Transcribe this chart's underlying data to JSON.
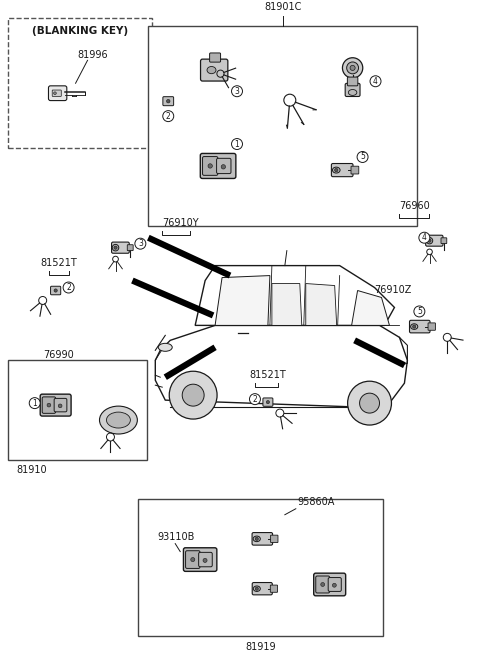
{
  "bg_color": "#ffffff",
  "fig_w": 4.8,
  "fig_h": 6.55,
  "dpi": 100,
  "lc": "#1a1a1a",
  "labels": {
    "blanking_key_title": "(BLANKING KEY)",
    "part_81996": "81996",
    "part_81901C": "81901C",
    "part_76910Y": "76910Y",
    "part_81521T_left": "81521T",
    "part_76990": "76990",
    "part_81910": "81910",
    "part_76960": "76960",
    "part_76910Z": "76910Z",
    "part_81521T_mid": "81521T",
    "part_95860A": "95860A",
    "part_93110B": "93110B",
    "part_81919": "81919"
  },
  "font_size": 7.0,
  "font_size_sm": 6.0
}
